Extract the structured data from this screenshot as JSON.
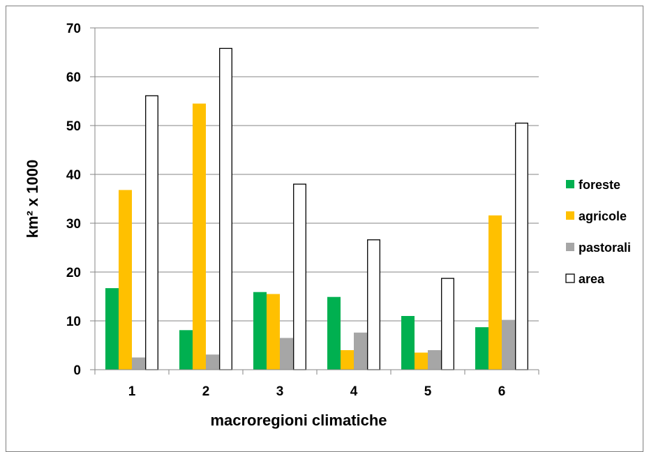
{
  "chart_data": {
    "type": "bar",
    "categories": [
      "1",
      "2",
      "3",
      "4",
      "5",
      "6"
    ],
    "series": [
      {
        "name": "foreste",
        "color": "#00b050",
        "fill": "#00b050",
        "stroke": "none",
        "values": [
          16.7,
          8.1,
          15.9,
          14.9,
          11.0,
          8.7
        ]
      },
      {
        "name": "agricole",
        "color": "#ffc000",
        "fill": "#ffc000",
        "stroke": "none",
        "values": [
          36.8,
          54.5,
          15.5,
          4.0,
          3.5,
          31.6
        ]
      },
      {
        "name": "pastorali",
        "color": "#a6a6a6",
        "fill": "#a6a6a6",
        "stroke": "none",
        "values": [
          2.5,
          3.1,
          6.5,
          7.6,
          4.0,
          10.2
        ]
      },
      {
        "name": "area",
        "color": "#000000",
        "fill": "#ffffff",
        "stroke": "#000000",
        "values": [
          56.1,
          65.8,
          38.0,
          26.6,
          18.7,
          50.5
        ]
      }
    ],
    "xlabel": "macroregioni climatiche",
    "ylabel": "km² x 1000",
    "ylim": [
      0,
      70
    ],
    "yticks": [
      0,
      10,
      20,
      30,
      40,
      50,
      60,
      70
    ],
    "grid": true,
    "legend_position": "right"
  }
}
